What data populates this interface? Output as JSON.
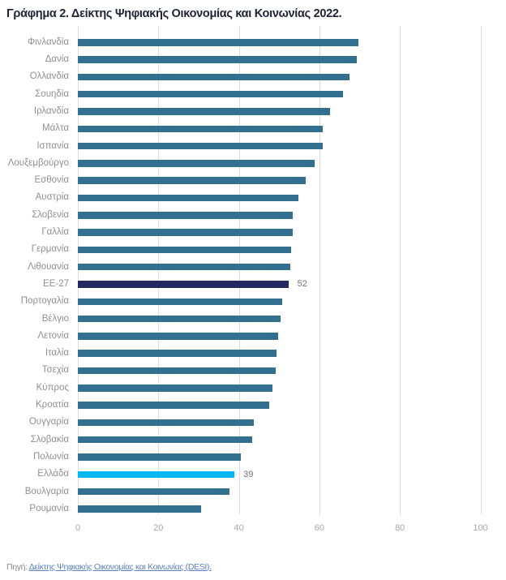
{
  "title": "Γράφημα 2. Δείκτης Ψηφιακής Οικονομίας και Κοινωνίας 2022.",
  "source": {
    "prefix": "Πηγή:",
    "link_text": "Δείκτης Ψηφιακής Οικονομίας και Κοινωνίας (DESI)."
  },
  "colors": {
    "bar_default": "#33708f",
    "bar_eu": "#232961",
    "bar_highlight": "#00b9f2",
    "gridline": "#dddddd",
    "title_text": "#1e2235",
    "row_label_text": "#8f8f8f",
    "axis_label_text": "#a6a6a6",
    "value_label_text": "#6f6f6f",
    "source_text": "#8a8a8a",
    "source_link": "#5b80c4"
  },
  "chart_data": {
    "type": "bar",
    "orientation": "horizontal",
    "title": "Γράφημα 2. Δείκτης Ψηφιακής Οικονομίας και Κοινωνίας 2022.",
    "xlabel": "",
    "ylabel": "",
    "xlim": [
      0,
      100
    ],
    "xticks": [
      "0",
      "20",
      "40",
      "60",
      "80",
      "100"
    ],
    "xtick_values": [
      0,
      20,
      40,
      60,
      80,
      100
    ],
    "grid": "vertical",
    "legend": "none",
    "rows": [
      {
        "label": "Φινλανδία",
        "value": 69.6,
        "kind": "default"
      },
      {
        "label": "Δανία",
        "value": 69.3,
        "kind": "default"
      },
      {
        "label": "Ολλανδία",
        "value": 67.4,
        "kind": "default"
      },
      {
        "label": "Σουηδία",
        "value": 65.9,
        "kind": "default"
      },
      {
        "label": "Ιρλανδία",
        "value": 62.7,
        "kind": "default"
      },
      {
        "label": "Μάλτα",
        "value": 60.9,
        "kind": "default"
      },
      {
        "label": "Ισπανία",
        "value": 60.8,
        "kind": "default"
      },
      {
        "label": "Λουξεμβούργο",
        "value": 58.9,
        "kind": "default"
      },
      {
        "label": "Εσθονία",
        "value": 56.5,
        "kind": "default"
      },
      {
        "label": "Αυστρία",
        "value": 54.7,
        "kind": "default"
      },
      {
        "label": "Σλοβενία",
        "value": 53.4,
        "kind": "default"
      },
      {
        "label": "Γαλλία",
        "value": 53.3,
        "kind": "default"
      },
      {
        "label": "Γερμανία",
        "value": 52.9,
        "kind": "default"
      },
      {
        "label": "Λιθουανία",
        "value": 52.7,
        "kind": "default"
      },
      {
        "label": "ΕΕ-27",
        "value": 52.3,
        "kind": "eu",
        "value_label": "52"
      },
      {
        "label": "Πορτογαλία",
        "value": 50.8,
        "kind": "default"
      },
      {
        "label": "Βέλγιο",
        "value": 50.3,
        "kind": "default"
      },
      {
        "label": "Λετονία",
        "value": 49.7,
        "kind": "default"
      },
      {
        "label": "Ιταλία",
        "value": 49.3,
        "kind": "default"
      },
      {
        "label": "Τσεχία",
        "value": 49.1,
        "kind": "default"
      },
      {
        "label": "Κύπρος",
        "value": 48.4,
        "kind": "default"
      },
      {
        "label": "Κροατία",
        "value": 47.5,
        "kind": "default"
      },
      {
        "label": "Ουγγαρία",
        "value": 43.8,
        "kind": "default"
      },
      {
        "label": "Σλοβακία",
        "value": 43.4,
        "kind": "default"
      },
      {
        "label": "Πολωνία",
        "value": 40.5,
        "kind": "default"
      },
      {
        "label": "Ελλάδα",
        "value": 38.9,
        "kind": "highlight",
        "value_label": "39"
      },
      {
        "label": "Βουλγαρία",
        "value": 37.7,
        "kind": "default"
      },
      {
        "label": "Ρουμανία",
        "value": 30.6,
        "kind": "default"
      }
    ]
  }
}
